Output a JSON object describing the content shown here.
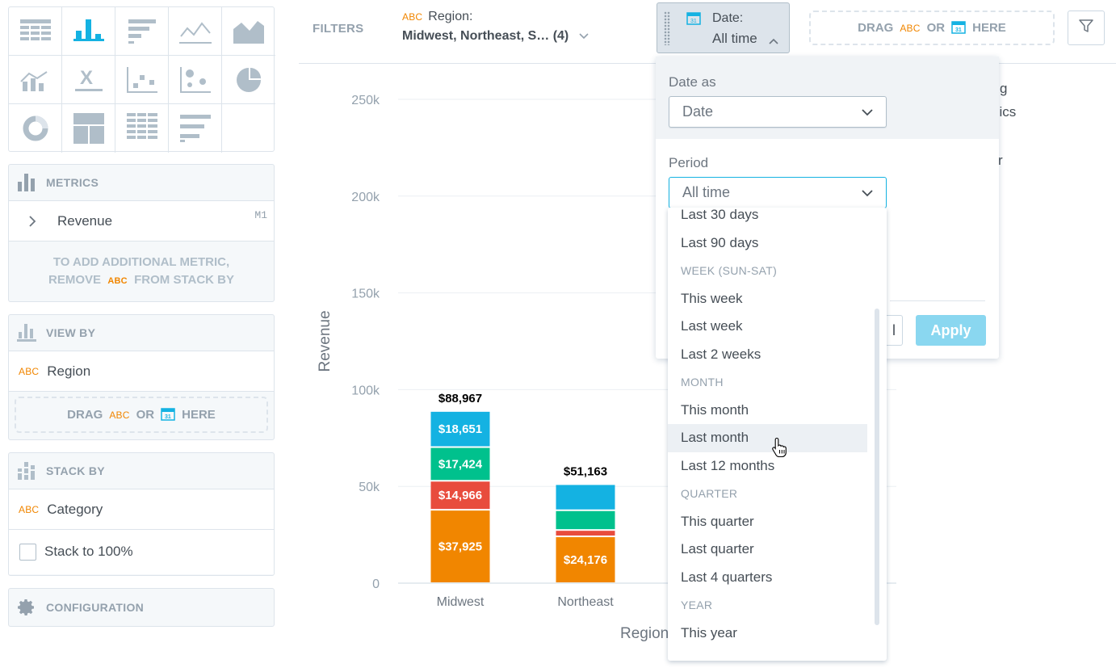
{
  "left": {
    "viz_types": [
      "table",
      "column",
      "bar",
      "line",
      "area",
      "combo",
      "headline",
      "scatter",
      "bubble",
      "pie",
      "donut",
      "treemap",
      "heatmap",
      "bullet"
    ],
    "metrics": {
      "title": "METRICS",
      "item": {
        "label": "Revenue",
        "id": "M1"
      },
      "hint_line1": "TO ADD ADDITIONAL METRIC,",
      "hint_remove": "REMOVE",
      "hint_abc": "ABC",
      "hint_tail": "FROM STACK BY"
    },
    "view_by": {
      "title": "VIEW BY",
      "item": {
        "abc": "ABC",
        "label": "Region"
      },
      "drop": {
        "drag": "DRAG",
        "abc": "ABC",
        "or": "OR",
        "here": "HERE"
      }
    },
    "stack_by": {
      "title": "STACK BY",
      "item": {
        "abc": "ABC",
        "label": "Category"
      },
      "checkbox_label": "Stack to 100%"
    },
    "configuration": {
      "title": "CONFIGURATION"
    }
  },
  "filterbar": {
    "label": "FILTERS",
    "region": {
      "abc": "ABC",
      "title": "Region:",
      "value": "Midwest, Northeast, S… (4)"
    },
    "date": {
      "title": "Date:",
      "value": "All time"
    },
    "drop": {
      "drag": "DRAG",
      "abc": "ABC",
      "or": "OR",
      "here": "HERE"
    }
  },
  "legend_fragments": [
    "g",
    "nics",
    "r"
  ],
  "date_overlay": {
    "date_as_label": "Date as",
    "date_as_value": "Date",
    "period_label": "Period",
    "period_value": "All time",
    "cancel_fragment": "l",
    "apply": "Apply",
    "period_options": [
      {
        "type": "item",
        "label": "Last 30 days"
      },
      {
        "type": "item",
        "label": "Last 90 days"
      },
      {
        "type": "header",
        "label": "WEEK (SUN-SAT)"
      },
      {
        "type": "item",
        "label": "This week"
      },
      {
        "type": "item",
        "label": "Last week"
      },
      {
        "type": "item",
        "label": "Last 2 weeks"
      },
      {
        "type": "header",
        "label": "MONTH"
      },
      {
        "type": "item",
        "label": "This month"
      },
      {
        "type": "item",
        "label": "Last month",
        "hover": true
      },
      {
        "type": "item",
        "label": "Last 12 months"
      },
      {
        "type": "header",
        "label": "QUARTER"
      },
      {
        "type": "item",
        "label": "This quarter"
      },
      {
        "type": "item",
        "label": "Last quarter"
      },
      {
        "type": "item",
        "label": "Last 4 quarters"
      },
      {
        "type": "header",
        "label": "YEAR"
      },
      {
        "type": "item",
        "label": "This year"
      }
    ]
  },
  "chart_data": {
    "type": "bar",
    "stacked": true,
    "xlabel": "Region",
    "ylabel": "Revenue",
    "ylim": [
      0,
      250000
    ],
    "yticks": [
      0,
      50000,
      100000,
      150000,
      200000,
      250000
    ],
    "ytick_labels": [
      "0",
      "50k",
      "100k",
      "150k",
      "200k",
      "250k"
    ],
    "categories": [
      "Midwest",
      "Northeast"
    ],
    "totals": [
      88967,
      51163
    ],
    "total_labels": [
      "$88,967",
      "$51,163"
    ],
    "series": [
      {
        "color": "#f18600",
        "values": [
          37925,
          24176
        ],
        "labels": [
          "$37,925",
          "$24,176"
        ]
      },
      {
        "color": "#e84c3d",
        "values": [
          14966,
          3300
        ],
        "labels": [
          "$14,966",
          ""
        ]
      },
      {
        "color": "#00c18d",
        "values": [
          17424,
          10200
        ],
        "labels": [
          "$17,424",
          ""
        ]
      },
      {
        "color": "#14b2e2",
        "values": [
          18651,
          13487
        ],
        "labels": [
          "$18,651",
          ""
        ]
      }
    ]
  }
}
